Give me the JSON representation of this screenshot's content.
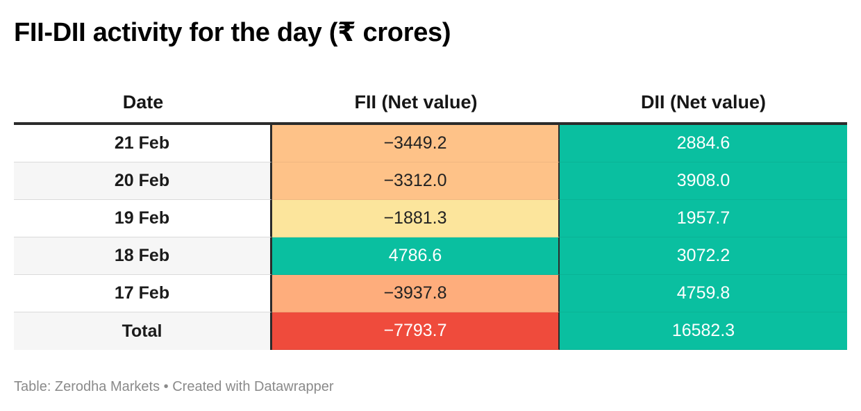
{
  "title": "FII-DII activity for the day (₹ crores)",
  "footer": "Table: Zerodha Markets • Created with Datawrapper",
  "chart_data": {
    "type": "table",
    "columns": [
      "Date",
      "FII (Net value)",
      "DII (Net value)"
    ],
    "rows": [
      {
        "date": "21 Feb",
        "fii": "−3449.2",
        "dii": "2884.6",
        "fii_color": "#FEC288",
        "dii_color": "#0ABFA0",
        "fii_text": "#222222",
        "dii_text": "#ffffff"
      },
      {
        "date": "20 Feb",
        "fii": "−3312.0",
        "dii": "3908.0",
        "fii_color": "#FEC288",
        "dii_color": "#0ABFA0",
        "fii_text": "#222222",
        "dii_text": "#ffffff"
      },
      {
        "date": "19 Feb",
        "fii": "−1881.3",
        "dii": "1957.7",
        "fii_color": "#FCE59C",
        "dii_color": "#0ABFA0",
        "fii_text": "#222222",
        "dii_text": "#ffffff"
      },
      {
        "date": "18 Feb",
        "fii": "4786.6",
        "dii": "3072.2",
        "fii_color": "#0ABFA0",
        "dii_color": "#0ABFA0",
        "fii_text": "#ffffff",
        "dii_text": "#ffffff"
      },
      {
        "date": "17 Feb",
        "fii": "−3937.8",
        "dii": "4759.8",
        "fii_color": "#FEAD7C",
        "dii_color": "#0ABFA0",
        "fii_text": "#222222",
        "dii_text": "#ffffff"
      },
      {
        "date": "Total",
        "fii": "−7793.7",
        "dii": "16582.3",
        "fii_color": "#EF4B3C",
        "dii_color": "#0ABFA0",
        "fii_text": "#ffffff",
        "dii_text": "#ffffff"
      }
    ]
  }
}
